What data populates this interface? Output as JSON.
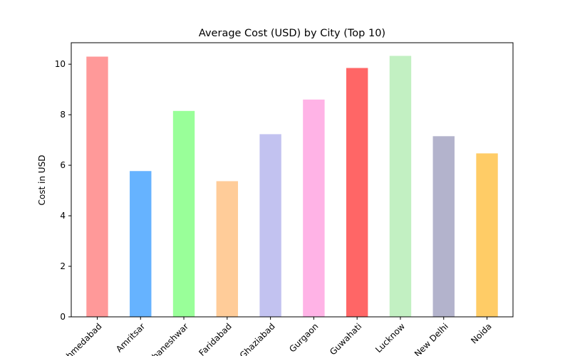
{
  "chart_data": {
    "type": "bar",
    "title": "Average Cost (USD) by City (Top 10)",
    "xlabel": "",
    "ylabel": "Cost in USD",
    "categories": [
      "Ahmedabad",
      "Amritsar",
      "Bhubaneshwar",
      "Faridabad",
      "Ghaziabad",
      "Gurgaon",
      "Guwahati",
      "Lucknow",
      "New Delhi",
      "Noida"
    ],
    "values": [
      10.3,
      5.77,
      8.15,
      5.37,
      7.23,
      8.6,
      9.85,
      10.33,
      7.15,
      6.47
    ],
    "colors": [
      "#ff9999",
      "#66b3ff",
      "#99ff99",
      "#ffcc99",
      "#c2c2f0",
      "#ffb3e6",
      "#ff6666",
      "#c2f0c2",
      "#b3b3cc",
      "#ffcc66"
    ],
    "ylim": [
      0,
      10.85
    ],
    "yticks": [
      0,
      2,
      4,
      6,
      8,
      10
    ],
    "grid": false,
    "legend": "none"
  }
}
